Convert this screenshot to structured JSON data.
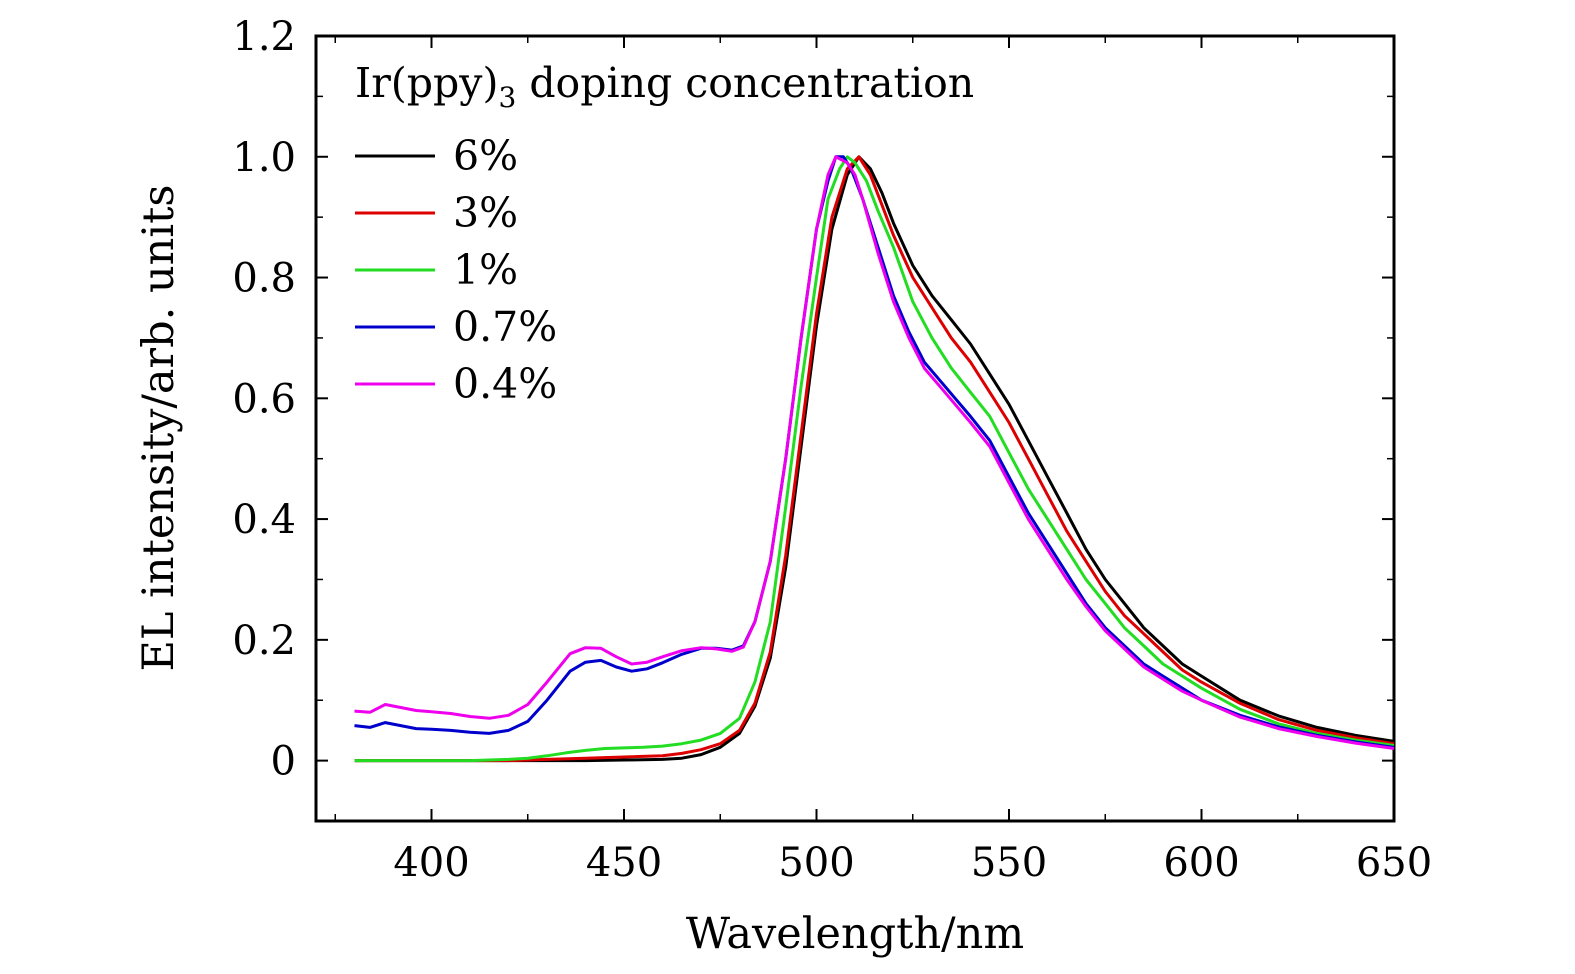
{
  "chart_data": {
    "type": "line",
    "xlabel": "Wavelength/nm",
    "ylabel": "EL intensity/arb. units",
    "xlim": [
      370,
      650
    ],
    "ylim": [
      -0.1,
      1.2
    ],
    "x_ticks": [
      400,
      450,
      500,
      550,
      600,
      650
    ],
    "x_tick_labels": [
      "400",
      "450",
      "500",
      "550",
      "600",
      "650"
    ],
    "y_ticks": [
      0,
      0.2,
      0.4,
      0.6,
      0.8,
      1.0,
      1.2
    ],
    "y_tick_labels": [
      "0",
      "0.2",
      "0.4",
      "0.6",
      "0.8",
      "1.0",
      "1.2"
    ],
    "grid": false,
    "legend": {
      "title_main": "Ir(ppy)",
      "title_sub": "3",
      "title_rest": " doping concentration",
      "position": "top-left"
    },
    "series": [
      {
        "name": "6%",
        "color": "#000000",
        "points": [
          [
            380,
            0.0
          ],
          [
            400,
            0.0
          ],
          [
            420,
            0.0
          ],
          [
            440,
            0.0
          ],
          [
            450,
            0.001
          ],
          [
            460,
            0.002
          ],
          [
            465,
            0.004
          ],
          [
            470,
            0.01
          ],
          [
            475,
            0.022
          ],
          [
            480,
            0.045
          ],
          [
            484,
            0.09
          ],
          [
            488,
            0.17
          ],
          [
            492,
            0.32
          ],
          [
            496,
            0.52
          ],
          [
            500,
            0.72
          ],
          [
            504,
            0.88
          ],
          [
            508,
            0.97
          ],
          [
            511,
            1.0
          ],
          [
            514,
            0.98
          ],
          [
            517,
            0.94
          ],
          [
            520,
            0.89
          ],
          [
            525,
            0.82
          ],
          [
            530,
            0.77
          ],
          [
            535,
            0.73
          ],
          [
            540,
            0.69
          ],
          [
            545,
            0.64
          ],
          [
            550,
            0.59
          ],
          [
            555,
            0.53
          ],
          [
            560,
            0.47
          ],
          [
            565,
            0.41
          ],
          [
            570,
            0.35
          ],
          [
            575,
            0.3
          ],
          [
            580,
            0.26
          ],
          [
            585,
            0.22
          ],
          [
            590,
            0.19
          ],
          [
            595,
            0.16
          ],
          [
            600,
            0.14
          ],
          [
            610,
            0.1
          ],
          [
            620,
            0.074
          ],
          [
            630,
            0.055
          ],
          [
            640,
            0.042
          ],
          [
            650,
            0.032
          ]
        ]
      },
      {
        "name": "3%",
        "color": "#dd0000",
        "points": [
          [
            380,
            0.0
          ],
          [
            400,
            0.0
          ],
          [
            420,
            0.0
          ],
          [
            430,
            0.002
          ],
          [
            440,
            0.004
          ],
          [
            450,
            0.006
          ],
          [
            460,
            0.008
          ],
          [
            465,
            0.012
          ],
          [
            470,
            0.018
          ],
          [
            475,
            0.028
          ],
          [
            480,
            0.05
          ],
          [
            484,
            0.095
          ],
          [
            488,
            0.18
          ],
          [
            492,
            0.34
          ],
          [
            496,
            0.54
          ],
          [
            500,
            0.74
          ],
          [
            504,
            0.9
          ],
          [
            508,
            0.98
          ],
          [
            511,
            1.0
          ],
          [
            514,
            0.97
          ],
          [
            517,
            0.92
          ],
          [
            520,
            0.87
          ],
          [
            525,
            0.8
          ],
          [
            530,
            0.75
          ],
          [
            535,
            0.7
          ],
          [
            540,
            0.66
          ],
          [
            545,
            0.61
          ],
          [
            550,
            0.56
          ],
          [
            555,
            0.5
          ],
          [
            560,
            0.44
          ],
          [
            565,
            0.38
          ],
          [
            570,
            0.33
          ],
          [
            575,
            0.28
          ],
          [
            580,
            0.24
          ],
          [
            585,
            0.21
          ],
          [
            590,
            0.18
          ],
          [
            595,
            0.15
          ],
          [
            600,
            0.13
          ],
          [
            610,
            0.095
          ],
          [
            620,
            0.068
          ],
          [
            630,
            0.05
          ],
          [
            640,
            0.038
          ],
          [
            650,
            0.028
          ]
        ]
      },
      {
        "name": "1%",
        "color": "#22dd22",
        "points": [
          [
            380,
            0.0
          ],
          [
            390,
            0.0
          ],
          [
            400,
            0.0
          ],
          [
            410,
            0.0
          ],
          [
            420,
            0.002
          ],
          [
            425,
            0.004
          ],
          [
            430,
            0.008
          ],
          [
            435,
            0.013
          ],
          [
            440,
            0.017
          ],
          [
            445,
            0.02
          ],
          [
            450,
            0.021
          ],
          [
            455,
            0.022
          ],
          [
            460,
            0.024
          ],
          [
            465,
            0.028
          ],
          [
            470,
            0.034
          ],
          [
            475,
            0.045
          ],
          [
            480,
            0.07
          ],
          [
            484,
            0.13
          ],
          [
            488,
            0.23
          ],
          [
            492,
            0.42
          ],
          [
            496,
            0.62
          ],
          [
            500,
            0.8
          ],
          [
            503,
            0.93
          ],
          [
            506,
            0.98
          ],
          [
            508,
            1.0
          ],
          [
            510,
            0.99
          ],
          [
            513,
            0.96
          ],
          [
            516,
            0.91
          ],
          [
            520,
            0.85
          ],
          [
            525,
            0.76
          ],
          [
            530,
            0.7
          ],
          [
            535,
            0.65
          ],
          [
            540,
            0.61
          ],
          [
            545,
            0.57
          ],
          [
            550,
            0.51
          ],
          [
            555,
            0.45
          ],
          [
            560,
            0.4
          ],
          [
            565,
            0.35
          ],
          [
            570,
            0.3
          ],
          [
            575,
            0.26
          ],
          [
            580,
            0.22
          ],
          [
            585,
            0.19
          ],
          [
            590,
            0.16
          ],
          [
            595,
            0.14
          ],
          [
            600,
            0.12
          ],
          [
            610,
            0.085
          ],
          [
            620,
            0.061
          ],
          [
            630,
            0.045
          ],
          [
            640,
            0.034
          ],
          [
            650,
            0.025
          ]
        ]
      },
      {
        "name": "0.7%",
        "color": "#0000cc",
        "points": [
          [
            380,
            0.058
          ],
          [
            384,
            0.055
          ],
          [
            388,
            0.063
          ],
          [
            392,
            0.058
          ],
          [
            396,
            0.053
          ],
          [
            400,
            0.052
          ],
          [
            405,
            0.05
          ],
          [
            410,
            0.047
          ],
          [
            415,
            0.045
          ],
          [
            420,
            0.05
          ],
          [
            425,
            0.065
          ],
          [
            430,
            0.1
          ],
          [
            436,
            0.148
          ],
          [
            440,
            0.163
          ],
          [
            444,
            0.166
          ],
          [
            448,
            0.155
          ],
          [
            452,
            0.148
          ],
          [
            456,
            0.152
          ],
          [
            460,
            0.162
          ],
          [
            465,
            0.176
          ],
          [
            470,
            0.186
          ],
          [
            474,
            0.186
          ],
          [
            478,
            0.183
          ],
          [
            481,
            0.19
          ],
          [
            484,
            0.23
          ],
          [
            488,
            0.33
          ],
          [
            492,
            0.5
          ],
          [
            496,
            0.7
          ],
          [
            500,
            0.88
          ],
          [
            503,
            0.96
          ],
          [
            505,
            1.0
          ],
          [
            507,
            1.0
          ],
          [
            509,
            0.98
          ],
          [
            512,
            0.93
          ],
          [
            516,
            0.85
          ],
          [
            520,
            0.77
          ],
          [
            524,
            0.71
          ],
          [
            528,
            0.66
          ],
          [
            532,
            0.63
          ],
          [
            536,
            0.6
          ],
          [
            540,
            0.57
          ],
          [
            545,
            0.53
          ],
          [
            550,
            0.47
          ],
          [
            555,
            0.41
          ],
          [
            560,
            0.36
          ],
          [
            565,
            0.31
          ],
          [
            570,
            0.26
          ],
          [
            575,
            0.22
          ],
          [
            580,
            0.19
          ],
          [
            585,
            0.16
          ],
          [
            590,
            0.14
          ],
          [
            595,
            0.12
          ],
          [
            600,
            0.1
          ],
          [
            610,
            0.075
          ],
          [
            620,
            0.056
          ],
          [
            630,
            0.042
          ],
          [
            640,
            0.031
          ],
          [
            650,
            0.022
          ]
        ]
      },
      {
        "name": "0.4%",
        "color": "#ee00ee",
        "points": [
          [
            380,
            0.082
          ],
          [
            384,
            0.08
          ],
          [
            388,
            0.093
          ],
          [
            392,
            0.088
          ],
          [
            396,
            0.083
          ],
          [
            400,
            0.081
          ],
          [
            405,
            0.078
          ],
          [
            410,
            0.073
          ],
          [
            415,
            0.07
          ],
          [
            420,
            0.075
          ],
          [
            425,
            0.093
          ],
          [
            430,
            0.13
          ],
          [
            436,
            0.177
          ],
          [
            440,
            0.187
          ],
          [
            444,
            0.186
          ],
          [
            448,
            0.172
          ],
          [
            452,
            0.16
          ],
          [
            456,
            0.163
          ],
          [
            460,
            0.172
          ],
          [
            465,
            0.182
          ],
          [
            470,
            0.187
          ],
          [
            474,
            0.185
          ],
          [
            478,
            0.181
          ],
          [
            481,
            0.188
          ],
          [
            484,
            0.23
          ],
          [
            488,
            0.33
          ],
          [
            492,
            0.5
          ],
          [
            496,
            0.7
          ],
          [
            500,
            0.88
          ],
          [
            503,
            0.97
          ],
          [
            505,
            1.0
          ],
          [
            508,
            0.99
          ],
          [
            510,
            0.97
          ],
          [
            512,
            0.93
          ],
          [
            516,
            0.84
          ],
          [
            520,
            0.76
          ],
          [
            524,
            0.7
          ],
          [
            528,
            0.65
          ],
          [
            532,
            0.62
          ],
          [
            536,
            0.59
          ],
          [
            540,
            0.56
          ],
          [
            545,
            0.52
          ],
          [
            550,
            0.46
          ],
          [
            555,
            0.4
          ],
          [
            560,
            0.35
          ],
          [
            565,
            0.3
          ],
          [
            570,
            0.255
          ],
          [
            575,
            0.215
          ],
          [
            580,
            0.185
          ],
          [
            585,
            0.155
          ],
          [
            590,
            0.135
          ],
          [
            595,
            0.115
          ],
          [
            600,
            0.1
          ],
          [
            610,
            0.072
          ],
          [
            620,
            0.053
          ],
          [
            630,
            0.04
          ],
          [
            640,
            0.029
          ],
          [
            650,
            0.02
          ]
        ]
      }
    ]
  }
}
